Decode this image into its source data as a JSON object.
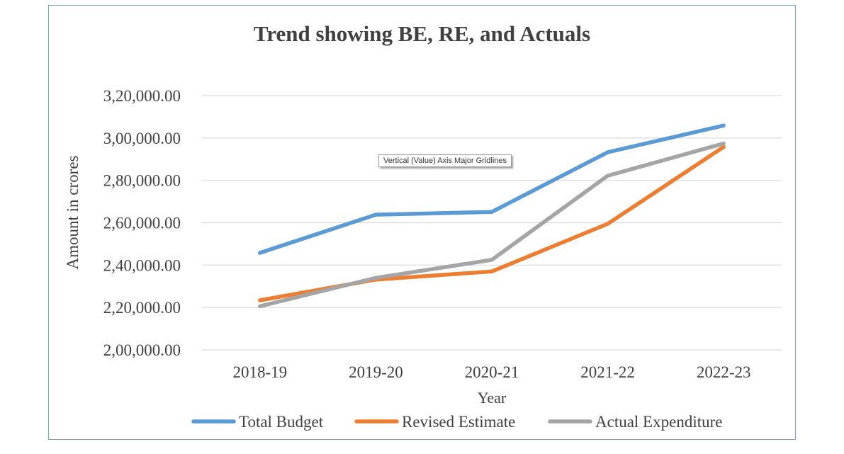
{
  "chart_data": {
    "type": "line",
    "title": "Trend showing BE, RE, and Actuals",
    "xlabel": "Year",
    "ylabel": "Amount in crores",
    "categories": [
      "2018-19",
      "2019-20",
      "2020-21",
      "2021-22",
      "2022-23"
    ],
    "ylim": [
      200000,
      320000
    ],
    "yticks": [
      200000,
      220000,
      240000,
      260000,
      280000,
      300000,
      320000
    ],
    "ytick_labels": [
      "2,00,000.00",
      "2,20,000.00",
      "2,40,000.00",
      "2,60,000.00",
      "2,80,000.00",
      "3,00,000.00",
      "3,20,000.00"
    ],
    "grid": true,
    "legend_position": "bottom",
    "series": [
      {
        "name": "Total Budget",
        "color": "#5b9bd5",
        "values": [
          245800,
          263800,
          265100,
          293300,
          305900
        ]
      },
      {
        "name": "Revised Estimate",
        "color": "#ed7d31",
        "values": [
          223400,
          233200,
          237000,
          259500,
          295800
        ]
      },
      {
        "name": "Actual Expenditure",
        "color": "#a5a5a5",
        "values": [
          220600,
          234000,
          242500,
          282200,
          297400
        ]
      }
    ],
    "tooltip": "Vertical (Value) Axis Major Gridlines"
  }
}
